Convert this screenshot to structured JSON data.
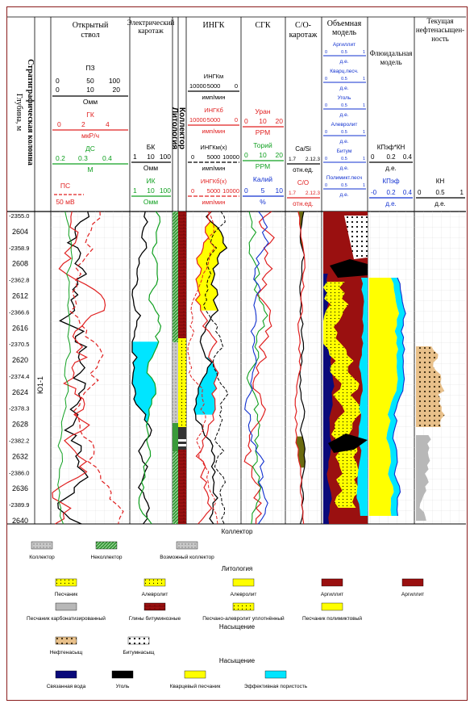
{
  "header": {
    "col_open_hole": [
      "Открытый",
      "ствол"
    ],
    "col_electric": [
      "Электрический",
      "каротаж"
    ],
    "col_ingk": "ИНГК",
    "col_sgk": "СГК",
    "col_co": [
      "С/О-",
      "каротаж"
    ],
    "col_volume": [
      "Объемная",
      "модель"
    ],
    "col_fluid": [
      "Флюидальная",
      "модель"
    ],
    "col_current": [
      "Текущая",
      "нефтенасыщен-",
      "ность"
    ],
    "strat_label": "Стратиграфическая колонна",
    "depth_label": "Глубина, м",
    "litho_label": "Литология",
    "collector_label": "Коллектор",
    "unit_label": "Ю1-1"
  },
  "curves_openhole": {
    "pz": {
      "name": "ПЗ",
      "ticks1": [
        "0",
        "50",
        "100"
      ],
      "ticks2": [
        "0",
        "10",
        "20"
      ],
      "unit": "Омм"
    },
    "gk": {
      "name": "ГК",
      "ticks": [
        "0",
        "2",
        "4"
      ],
      "unit": "мкР/ч"
    },
    "ds": {
      "name": "ДС",
      "ticks": [
        "0.2",
        "0.3",
        "0.4"
      ],
      "unit": "М"
    },
    "ps": {
      "name": "ПС",
      "unit": "50 мВ"
    }
  },
  "curves_electric": {
    "bk": {
      "name": "БК",
      "ticks": [
        "1",
        "10",
        "100"
      ],
      "unit": "Омм"
    },
    "ik": {
      "name": "ИК",
      "ticks": [
        "1",
        "10",
        "100"
      ],
      "unit": "Омм"
    }
  },
  "curves_ingk": {
    "ingkm": {
      "name": "ИНГКм",
      "ticks": [
        "10000",
        "5000",
        "0"
      ],
      "unit": "имп/мин"
    },
    "ingkb": {
      "name": "ИНГКб",
      "ticks": [
        "10000",
        "5000",
        "0"
      ],
      "unit": "имп/мин"
    },
    "ingkmx": {
      "name": "ИНГКм(х)",
      "ticks": [
        "0",
        "5000",
        "10000"
      ],
      "unit": "имп/мин"
    },
    "ingkbx": {
      "name": "ИНГКб(х)",
      "ticks": [
        "0",
        "5000",
        "10000"
      ],
      "unit": "имп/мин"
    }
  },
  "curves_sgk": {
    "uran": {
      "name": "Уран",
      "ticks": [
        "0",
        "10",
        "20"
      ],
      "unit": "PPM"
    },
    "toriy": {
      "name": "Торий",
      "ticks": [
        "0",
        "10",
        "20"
      ],
      "unit": "PPM"
    },
    "kaliy": {
      "name": "Калий",
      "ticks": [
        "0",
        "5",
        "10"
      ],
      "unit": "%"
    }
  },
  "curves_co": {
    "casi": {
      "name": "Ca/Si",
      "ticks": [
        "1.7",
        "2.12.3"
      ],
      "unit": "отн.ед."
    },
    "co": {
      "name": "С/О",
      "ticks": [
        "1.7",
        "2.12.3"
      ],
      "unit": "отн.ед."
    }
  },
  "curves_volume": {
    "items": [
      "Аргиллит",
      "Кварц.песч.",
      "Уголь",
      "Алевролит",
      "Битум",
      "Полимикт.песч"
    ],
    "ticks": [
      "0",
      "0.5",
      "1"
    ],
    "unit": "д.е."
  },
  "curves_fluid": {
    "kpef_kn": {
      "name": "КПэф*КН",
      "ticks": [
        "0",
        "0.2",
        "0.4"
      ],
      "unit": "д.е."
    },
    "kpef": {
      "name": "КПэф",
      "ticks": [
        "-0",
        "0.2",
        "0.4"
      ],
      "unit": "д.е."
    }
  },
  "curves_current": {
    "kn": {
      "name": "КН",
      "ticks": [
        "0",
        "0.5",
        "1"
      ],
      "unit": "д.е."
    }
  },
  "depth_labels": [
    "-2355.0",
    "2604",
    "-2358.9",
    "2608",
    "-2362.8",
    "2612",
    "-2366.6",
    "2616",
    "-2370.5",
    "2620",
    "-2374.4",
    "2624",
    "-2378.3",
    "2628",
    "-2382.2",
    "2632",
    "-2386.0",
    "2636",
    "-2389.9",
    "2640"
  ],
  "legend": {
    "collector_title": "Коллектор",
    "collector_items": [
      "Коллектор",
      "Неколлектор",
      "Возможный коллектор"
    ],
    "litho_title": "Литология",
    "litho_items": [
      "Песчаник",
      "Алевролит",
      "Алевролит",
      "Аргиллит",
      "Аргиллит",
      "Песчаник карбонатизированный",
      "Глины битуминозные",
      "Песчано-алевролит уплотнённый",
      "Песчаник полимиктовый"
    ],
    "sat_title": "Насыщение",
    "sat_items": [
      "Нефтенасыщ",
      "Битумнасыщ"
    ],
    "sat2_title": "Насыщение",
    "sat2_items": [
      "Связанная вода",
      "Уголь",
      "Кварцевый песчаник",
      "Эффективная пористость"
    ]
  },
  "colors": {
    "frame": "#8a1c1c",
    "red": "#e02020",
    "green": "#10a020",
    "blue": "#1030d0",
    "cyan": "#00e5ff",
    "yellow": "#ffff00",
    "brown": "#9a1010",
    "navy": "#0a0a7a",
    "olive": "#6b6b10",
    "kn_fill": "#e8c08a",
    "grey_fill": "#b8b8b8"
  }
}
